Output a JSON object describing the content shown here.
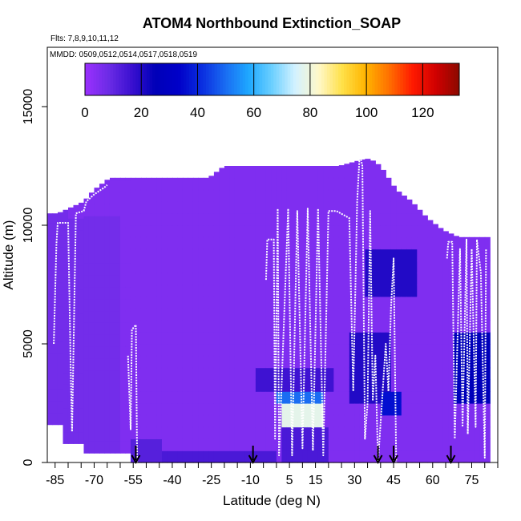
{
  "chart_data": {
    "type": "heatmap",
    "title": "ATOM4 Northbound Extinction_SOAP",
    "annotations": {
      "flights": "Flts: 7,8,9,10,11,12",
      "dates": "MMDD: 0509,0512,0514,0517,0518,0519"
    },
    "xlabel": "Latitude (deg N)",
    "ylabel": "Altitude (m)",
    "xlim": [
      -88,
      85
    ],
    "ylim": [
      0,
      17500
    ],
    "x_tick_labels": [
      "-85",
      "-70",
      "-55",
      "-40",
      "-25",
      "-10",
      "5",
      "15",
      "30",
      "45",
      "60",
      "75"
    ],
    "y_tick_labels": [
      "0",
      "5000",
      "10000",
      "15000"
    ],
    "colorbar": {
      "range": [
        0,
        133
      ],
      "tick_labels": [
        "0",
        "20",
        "40",
        "60",
        "80",
        "100",
        "120"
      ],
      "colors": [
        "#9b30ff",
        "#6c2ce6",
        "#3a10d0",
        "#0000b8",
        "#0000c8",
        "#0a2ee0",
        "#1a6cf2",
        "#1ea8ff",
        "#6cd0ff",
        "#d4f2ff",
        "#fff8c8",
        "#ffe048",
        "#ffb400",
        "#ff7000",
        "#ff1a00",
        "#d00000",
        "#8b0a00"
      ]
    },
    "base_value": 5,
    "profile_bounds": [
      {
        "lat": -86,
        "top": 10500
      },
      {
        "lat": -84,
        "top": 10500
      },
      {
        "lat": -80,
        "top": 10700
      },
      {
        "lat": -74,
        "top": 11000
      },
      {
        "lat": -70,
        "top": 11500
      },
      {
        "lat": -64,
        "top": 12000
      },
      {
        "lat": -45,
        "top": 12000
      },
      {
        "lat": -26,
        "top": 12000
      },
      {
        "lat": -20,
        "top": 12500
      },
      {
        "lat": 24,
        "top": 12500
      },
      {
        "lat": 34,
        "top": 12800
      },
      {
        "lat": 36,
        "top": 12800
      },
      {
        "lat": 40,
        "top": 12500
      },
      {
        "lat": 46,
        "top": 11500
      },
      {
        "lat": 52,
        "top": 11000
      },
      {
        "lat": 58,
        "top": 10300
      },
      {
        "lat": 64,
        "top": 9800
      },
      {
        "lat": 70,
        "top": 9500
      },
      {
        "lat": 76,
        "top": 9500
      },
      {
        "lat": 82,
        "top": 9500
      }
    ],
    "profile_bottoms": [
      {
        "from": -88,
        "to": -82,
        "bottom": 1600
      },
      {
        "from": -82,
        "to": -74,
        "bottom": 800
      },
      {
        "from": -74,
        "to": -56,
        "bottom": 400
      },
      {
        "from": -56,
        "to": 82,
        "bottom": 0
      }
    ],
    "features": [
      {
        "lat": [
          -88,
          -60
        ],
        "alt": [
          0,
          10500
        ],
        "value": 7
      },
      {
        "lat": [
          -8,
          22
        ],
        "alt": [
          3000,
          4000
        ],
        "value": 16
      },
      {
        "lat": [
          0,
          18
        ],
        "alt": [
          2300,
          2800
        ],
        "value": 50
      },
      {
        "lat": [
          3,
          18
        ],
        "alt": [
          1300,
          2300
        ],
        "value": 78
      },
      {
        "lat": [
          2,
          20
        ],
        "alt": [
          0,
          1300
        ],
        "value": 14
      },
      {
        "lat": [
          28,
          43
        ],
        "alt": [
          2600,
          5400
        ],
        "value": 20
      },
      {
        "lat": [
          41,
          47
        ],
        "alt": [
          2200,
          3000
        ],
        "value": 36
      },
      {
        "lat": [
          34,
          54
        ],
        "alt": [
          7200,
          9200
        ],
        "value": 20
      },
      {
        "lat": [
          68,
          82
        ],
        "alt": [
          2400,
          5600
        ],
        "value": 26
      },
      {
        "lat": [
          -56,
          -45
        ],
        "alt": [
          0,
          800
        ],
        "value": 12
      },
      {
        "lat": [
          -44,
          0
        ],
        "alt": [
          0,
          600
        ],
        "value": 14
      }
    ],
    "flight_tracks": [
      [
        [
          -85.5,
          5000
        ],
        [
          -84.5,
          9200
        ],
        [
          -84,
          10100
        ],
        [
          -80,
          10100
        ],
        [
          -79,
          4000
        ],
        [
          -78.5,
          1300
        ],
        [
          -77,
          10500
        ],
        [
          -74,
          10600
        ],
        [
          -73,
          11000
        ],
        [
          -70,
          11300
        ],
        [
          -66,
          11600
        ],
        [
          -65,
          11700
        ]
      ],
      [
        [
          -57,
          4500
        ],
        [
          -56,
          1400
        ],
        [
          -55.5,
          5600
        ],
        [
          -54,
          5800
        ],
        [
          -53.5,
          0
        ]
      ],
      [
        [
          -4,
          7700
        ],
        [
          -3.5,
          9400
        ],
        [
          -1,
          9400
        ],
        [
          -0.5,
          1000
        ],
        [
          0.5,
          10700
        ],
        [
          1,
          300
        ],
        [
          4.5,
          10700
        ],
        [
          6,
          300
        ],
        [
          8,
          10600
        ],
        [
          10,
          600
        ],
        [
          12,
          10700
        ],
        [
          14,
          500
        ],
        [
          16,
          10700
        ],
        [
          18,
          300
        ],
        [
          20,
          10600
        ],
        [
          23,
          10600
        ],
        [
          28,
          10300
        ],
        [
          29.5,
          3000
        ],
        [
          31,
          11000
        ],
        [
          32,
          13000
        ],
        [
          33,
          12500
        ],
        [
          34,
          1000
        ],
        [
          35,
          2500
        ],
        [
          36,
          10600
        ],
        [
          37,
          2600
        ],
        [
          38,
          4500
        ],
        [
          39,
          0
        ],
        [
          42,
          5000
        ],
        [
          43,
          3000
        ],
        [
          44,
          6500
        ],
        [
          45,
          8600
        ],
        [
          46,
          0
        ]
      ],
      [
        [
          65.5,
          8600
        ],
        [
          66,
          9300
        ],
        [
          67.5,
          9300
        ],
        [
          68.5,
          1000
        ],
        [
          70.5,
          9000
        ],
        [
          71.5,
          1500
        ],
        [
          73,
          9400
        ],
        [
          73.5,
          1200
        ],
        [
          75,
          9000
        ],
        [
          76.5,
          1500
        ],
        [
          77,
          9400
        ],
        [
          78.5,
          8000
        ],
        [
          80,
          200
        ],
        [
          80.5,
          9000
        ]
      ]
    ],
    "arrow_lats": [
      -54,
      -9,
      39,
      45,
      67
    ]
  }
}
